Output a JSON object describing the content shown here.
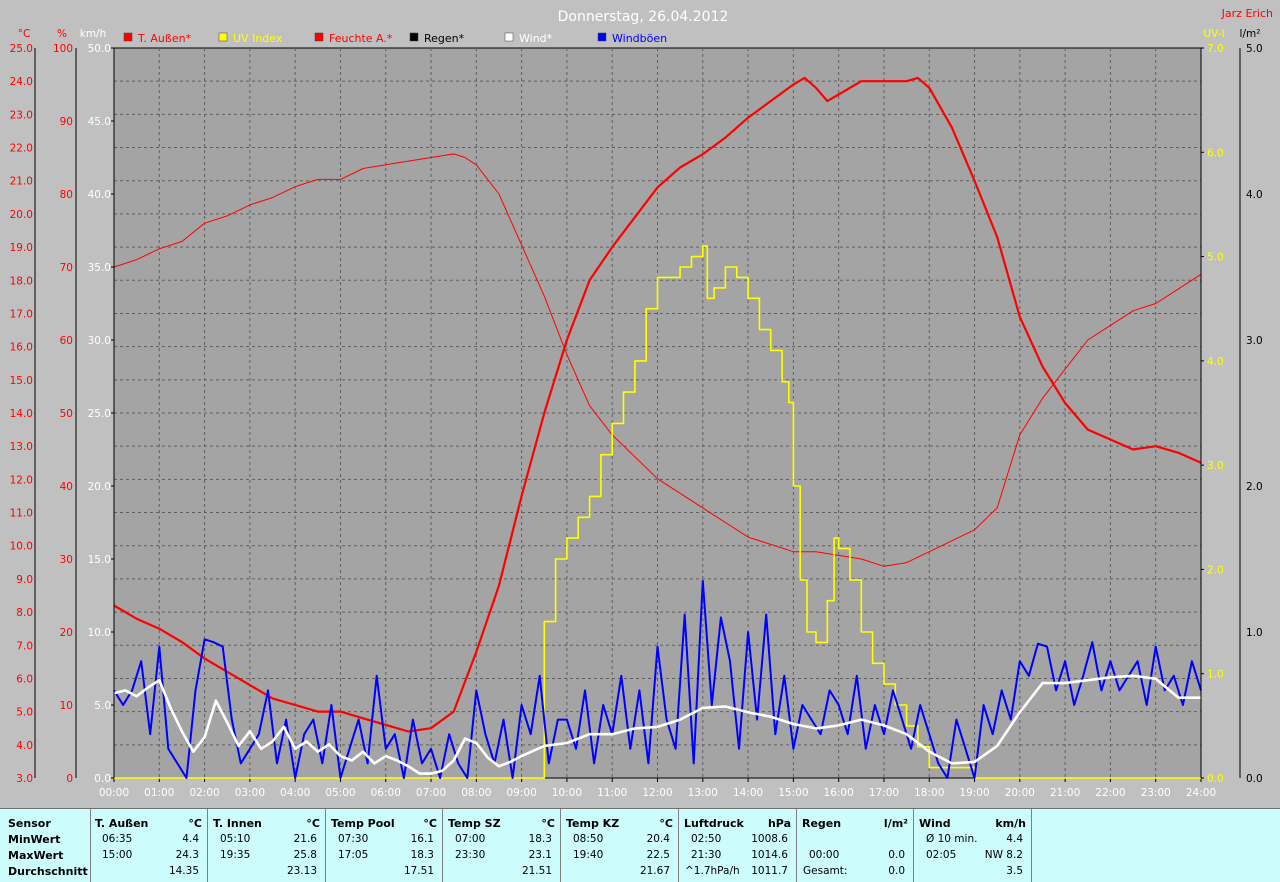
{
  "chart_data": {
    "type": "line",
    "title": "Donnerstag, 26.04.2012",
    "author": "Jarz Erich",
    "x_ticks": [
      "00:00",
      "01:00",
      "02:00",
      "03:00",
      "04:00",
      "05:00",
      "06:00",
      "07:00",
      "08:00",
      "09:00",
      "10:00",
      "11:00",
      "12:00",
      "13:00",
      "14:00",
      "15:00",
      "16:00",
      "17:00",
      "18:00",
      "19:00",
      "20:00",
      "21:00",
      "22:00",
      "23:00",
      "24:00"
    ],
    "axes": {
      "temp": {
        "unit": "°C",
        "range": [
          3.0,
          25.0
        ],
        "ticks": [
          "3.0",
          "4.0",
          "5.0",
          "6.0",
          "7.0",
          "8.0",
          "9.0",
          "10.0",
          "11.0",
          "12.0",
          "13.0",
          "14.0",
          "15.0",
          "16.0",
          "17.0",
          "18.0",
          "19.0",
          "20.0",
          "21.0",
          "22.0",
          "23.0",
          "24.0",
          "25.0"
        ]
      },
      "humidity": {
        "unit": "%",
        "range": [
          0,
          100
        ],
        "ticks": [
          "0",
          "10",
          "20",
          "30",
          "40",
          "50",
          "60",
          "70",
          "80",
          "90",
          "100"
        ]
      },
      "wind": {
        "unit": "km/h",
        "range": [
          0,
          50
        ],
        "ticks": [
          "0.0",
          "5.0",
          "10.0",
          "15.0",
          "20.0",
          "25.0",
          "30.0",
          "35.0",
          "40.0",
          "45.0",
          "50.0"
        ]
      },
      "uv": {
        "unit": "UV-I",
        "range": [
          0,
          7
        ],
        "ticks": [
          "0.0",
          "1.0",
          "2.0",
          "3.0",
          "4.0",
          "5.0",
          "6.0",
          "7.0"
        ]
      },
      "rain": {
        "unit": "l/m²",
        "range": [
          0,
          5
        ],
        "ticks": [
          "0.0",
          "1.0",
          "2.0",
          "3.0",
          "4.0",
          "5.0"
        ]
      }
    },
    "legend": [
      {
        "name": "T. Außen*",
        "color": "#ff0000"
      },
      {
        "name": "UV Index",
        "color": "#ffff00"
      },
      {
        "name": "Feuchte A.*",
        "color": "#ff0000"
      },
      {
        "name": "Regen*",
        "color": "#000000"
      },
      {
        "name": "Wind*",
        "color": "#ffffff"
      },
      {
        "name": "Windböen",
        "color": "#0000ff"
      }
    ],
    "series": [
      {
        "key": "temp",
        "axis": "temp",
        "color": "#ff0000",
        "width": 2.2,
        "x": [
          0,
          0.5,
          1,
          1.5,
          2,
          2.5,
          3,
          3.5,
          4,
          4.5,
          5,
          5.5,
          6,
          6.5,
          7,
          7.5,
          8,
          8.5,
          9,
          9.5,
          10,
          10.5,
          11,
          11.5,
          12,
          12.5,
          13,
          13.5,
          14,
          14.5,
          15,
          15.25,
          15.5,
          15.75,
          16,
          16.5,
          17,
          17.5,
          17.75,
          18,
          18.5,
          19,
          19.5,
          20,
          20.5,
          21,
          21.5,
          22,
          22.5,
          23,
          23.5,
          24
        ],
        "y": [
          8.2,
          7.8,
          7.5,
          7.1,
          6.6,
          6.2,
          5.8,
          5.4,
          5.2,
          5.0,
          5.0,
          4.8,
          4.6,
          4.4,
          4.5,
          5.0,
          6.8,
          8.8,
          11.5,
          14.0,
          16.2,
          18.0,
          19.0,
          19.9,
          20.8,
          21.4,
          21.8,
          22.3,
          22.9,
          23.4,
          23.9,
          24.1,
          23.8,
          23.4,
          23.6,
          24.0,
          24.0,
          24.0,
          24.1,
          23.8,
          22.6,
          21.0,
          19.3,
          16.9,
          15.4,
          14.3,
          13.5,
          13.2,
          12.9,
          13.0,
          12.8,
          12.5
        ]
      },
      {
        "key": "humidity",
        "axis": "humidity",
        "color": "#ff0000",
        "width": 1,
        "x": [
          0,
          0.5,
          1,
          1.5,
          2,
          2.5,
          3,
          3.5,
          4,
          4.5,
          5,
          5.5,
          6,
          6.5,
          7,
          7.5,
          7.75,
          8,
          8.5,
          9,
          9.5,
          10,
          10.5,
          11,
          11.5,
          12,
          12.5,
          13,
          13.5,
          14,
          14.5,
          15,
          15.5,
          16,
          16.5,
          17,
          17.5,
          18,
          18.5,
          19,
          19.5,
          20,
          20.5,
          21,
          21.5,
          22,
          22.5,
          23,
          23.5,
          24
        ],
        "y": [
          70,
          71,
          72.5,
          73.5,
          76,
          77,
          78.5,
          79.5,
          81,
          82,
          82,
          83.5,
          84,
          84.5,
          85,
          85.5,
          85,
          84,
          80,
          73,
          66,
          58,
          51,
          47,
          44,
          41,
          39,
          37,
          35,
          33,
          32,
          31,
          31,
          30.5,
          30,
          29,
          29.5,
          31,
          32.5,
          34,
          37,
          47,
          52,
          56,
          60,
          62,
          64,
          65,
          67,
          69
        ]
      },
      {
        "key": "uv",
        "axis": "uv",
        "color": "#ffff00",
        "width": 1.6,
        "step": true,
        "x": [
          0,
          9.3,
          9.5,
          9.75,
          10,
          10.25,
          10.5,
          10.75,
          11,
          11.25,
          11.5,
          11.75,
          12,
          12.5,
          12.75,
          13,
          13.1,
          13.25,
          13.5,
          13.75,
          14,
          14.25,
          14.5,
          14.75,
          14.9,
          15,
          15.15,
          15.3,
          15.5,
          15.75,
          15.9,
          16,
          16.25,
          16.5,
          16.75,
          17,
          17.25,
          17.5,
          17.75,
          18,
          18.5,
          18.75,
          19,
          24
        ],
        "y": [
          0,
          0,
          1.5,
          2.1,
          2.3,
          2.5,
          2.7,
          3.1,
          3.4,
          3.7,
          4.0,
          4.5,
          4.8,
          4.9,
          5.0,
          5.1,
          4.6,
          4.7,
          4.9,
          4.8,
          4.6,
          4.3,
          4.1,
          3.8,
          3.6,
          2.8,
          1.9,
          1.4,
          1.3,
          1.7,
          2.3,
          2.2,
          1.9,
          1.4,
          1.1,
          0.9,
          0.7,
          0.5,
          0.3,
          0.1,
          0.1,
          0.1,
          0,
          0
        ]
      },
      {
        "key": "gust",
        "axis": "wind",
        "color": "#0000ff",
        "width": 2,
        "x": [
          0,
          0.2,
          0.4,
          0.6,
          0.8,
          1.0,
          1.2,
          1.4,
          1.6,
          1.8,
          2.0,
          2.2,
          2.4,
          2.6,
          2.8,
          3.0,
          3.2,
          3.4,
          3.6,
          3.8,
          4.0,
          4.2,
          4.4,
          4.6,
          4.8,
          5.0,
          5.2,
          5.4,
          5.6,
          5.8,
          6.0,
          6.2,
          6.4,
          6.6,
          6.8,
          7.0,
          7.2,
          7.4,
          7.6,
          7.8,
          8.0,
          8.2,
          8.4,
          8.6,
          8.8,
          9.0,
          9.2,
          9.4,
          9.6,
          9.8,
          10.0,
          10.2,
          10.4,
          10.6,
          10.8,
          11.0,
          11.2,
          11.4,
          11.6,
          11.8,
          12.0,
          12.2,
          12.4,
          12.6,
          12.8,
          13.0,
          13.2,
          13.4,
          13.6,
          13.8,
          14.0,
          14.2,
          14.4,
          14.6,
          14.8,
          15.0,
          15.2,
          15.4,
          15.6,
          15.8,
          16.0,
          16.2,
          16.4,
          16.6,
          16.8,
          17.0,
          17.2,
          17.4,
          17.6,
          17.8,
          18.0,
          18.2,
          18.4,
          18.6,
          18.8,
          19.0,
          19.2,
          19.4,
          19.6,
          19.8,
          20.0,
          20.2,
          20.4,
          20.6,
          20.8,
          21.0,
          21.2,
          21.4,
          21.6,
          21.8,
          22.0,
          22.2,
          22.4,
          22.6,
          22.8,
          23.0,
          23.2,
          23.4,
          23.6,
          23.8,
          24.0
        ],
        "y": [
          6,
          5,
          6,
          8,
          3,
          9,
          2,
          1,
          0,
          6,
          7,
          3,
          9,
          4,
          1,
          2,
          3,
          6,
          1,
          4,
          0,
          3,
          4,
          1,
          5,
          0,
          2,
          4,
          1,
          7,
          2,
          3,
          0,
          4,
          1,
          2,
          0,
          3,
          1,
          0,
          6,
          3,
          1,
          4,
          0,
          5,
          3,
          7,
          1,
          4,
          4,
          2,
          6,
          1,
          5,
          3,
          7,
          2,
          6,
          1,
          9,
          4,
          2,
          8,
          1,
          11,
          5,
          3,
          8,
          2,
          10,
          4,
          6,
          3,
          7,
          2,
          5,
          4,
          3,
          6,
          5,
          3,
          7,
          2,
          5,
          3,
          6,
          4,
          2,
          5,
          3,
          1,
          0,
          4,
          2,
          0,
          5,
          3,
          6,
          4,
          8,
          7,
          5,
          9,
          6,
          8,
          5,
          7,
          9,
          6,
          8,
          6,
          7,
          8,
          5,
          9,
          6,
          7,
          5,
          8,
          6
        ],
        "y_overrides": {
          "0.1": 6.5,
          "0.9": 9.7,
          "2.0": 9.5,
          "2.2": 9.3,
          "12.6": 11.2,
          "13.0": 13.5,
          "13.4": 11.0,
          "14.4": 11.2,
          "20.4": 9.2,
          "21.6": 9.3
        }
      },
      {
        "key": "wind",
        "axis": "wind",
        "color": "#ffffff",
        "width": 2.6,
        "x": [
          0,
          0.25,
          0.5,
          0.75,
          1.0,
          1.25,
          1.5,
          1.75,
          2.0,
          2.25,
          2.5,
          2.75,
          3.0,
          3.25,
          3.5,
          3.75,
          4.0,
          4.25,
          4.5,
          4.75,
          5.0,
          5.25,
          5.5,
          5.75,
          6.0,
          6.25,
          6.5,
          6.75,
          7.0,
          7.25,
          7.5,
          7.75,
          8.0,
          8.25,
          8.5,
          8.75,
          9.0,
          9.5,
          10.0,
          10.5,
          11.0,
          11.5,
          12.0,
          12.5,
          13.0,
          13.5,
          14.0,
          14.5,
          15.0,
          15.5,
          16.0,
          16.5,
          17.0,
          17.5,
          18.0,
          18.5,
          19.0,
          19.5,
          20.0,
          20.5,
          21.0,
          21.5,
          22.0,
          22.5,
          23.0,
          23.5,
          24.0
        ],
        "y": [
          5.8,
          6.0,
          5.6,
          6.2,
          6.7,
          4.8,
          3.2,
          1.8,
          2.8,
          5.3,
          3.8,
          2.2,
          3.2,
          2.0,
          2.5,
          3.5,
          2.0,
          2.5,
          1.8,
          2.3,
          1.5,
          1.2,
          1.8,
          1.0,
          1.5,
          1.2,
          0.8,
          0.3,
          0.3,
          0.5,
          1.2,
          2.7,
          2.4,
          1.4,
          0.8,
          1.1,
          1.5,
          2.2,
          2.4,
          3.0,
          3.0,
          3.4,
          3.5,
          4.0,
          4.8,
          4.9,
          4.5,
          4.2,
          3.7,
          3.4,
          3.6,
          4.0,
          3.6,
          3.0,
          1.8,
          1.0,
          1.1,
          2.2,
          4.5,
          6.5,
          6.5,
          6.7,
          6.9,
          7.0,
          6.8,
          5.5,
          5.5
        ]
      }
    ]
  },
  "table": {
    "rowlabels": {
      "h": "Sensor",
      "r1": "MinWert",
      "r2": "MaxWert",
      "r3": "Durchschnitt"
    },
    "columns": [
      {
        "h": "T. Außen",
        "u": "°C",
        "r1t": "06:35",
        "r1v": "4.4",
        "r2t": "15:00",
        "r2v": "24.3",
        "r3t": "",
        "r3v": "14.35"
      },
      {
        "h": "T. Innen",
        "u": "°C",
        "r1t": "05:10",
        "r1v": "21.6",
        "r2t": "19:35",
        "r2v": "25.8",
        "r3t": "",
        "r3v": "23.13"
      },
      {
        "h": "Temp Pool",
        "u": "°C",
        "r1t": "07:30",
        "r1v": "16.1",
        "r2t": "17:05",
        "r2v": "18.3",
        "r3t": "",
        "r3v": "17.51"
      },
      {
        "h": "Temp SZ",
        "u": "°C",
        "r1t": "07:00",
        "r1v": "18.3",
        "r2t": "23:30",
        "r2v": "23.1",
        "r3t": "",
        "r3v": "21.51"
      },
      {
        "h": "Temp KZ",
        "u": "°C",
        "r1t": "08:50",
        "r1v": "20.4",
        "r2t": "19:40",
        "r2v": "22.5",
        "r3t": "",
        "r3v": "21.67"
      },
      {
        "h": "Luftdruck",
        "u": "hPa",
        "r1t": "02:50",
        "r1v": "1008.6",
        "r2t": "21:30",
        "r2v": "1014.6",
        "r3t": "^1.7hPa/h",
        "r3v": "1011.7"
      },
      {
        "h": "Regen",
        "u": "l/m²",
        "r1t": "",
        "r1v": "",
        "r2t": "00:00",
        "r2v": "0.0",
        "r3t": "Gesamt:",
        "r3v": "0.0"
      },
      {
        "h": "Wind",
        "u": "km/h",
        "r1t": "Ø 10 min.",
        "r1v": "4.4",
        "r2t": "02:05",
        "r2v": "NW 8.2",
        "r3t": "",
        "r3v": "3.5"
      }
    ]
  }
}
